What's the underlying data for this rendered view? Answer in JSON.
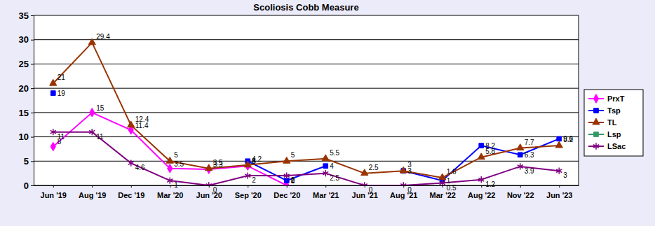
{
  "chart_data": {
    "type": "line",
    "title": "Scoliosis Cobb Measure",
    "categories": [
      "Jun '19",
      "Aug '19",
      "Dec '19",
      "Mar '20",
      "Jun '20",
      "Sep '20",
      "Dec '20",
      "Mar '21",
      "Jun '21",
      "Aug '21",
      "Mar '22",
      "Aug '22",
      "Nov '22",
      "Jun '23"
    ],
    "series": [
      {
        "name": "PrxT",
        "color": "#ff00ff",
        "marker": "diamond",
        "values": [
          8,
          15,
          11.4,
          3.5,
          3.3,
          4,
          0,
          null,
          null,
          null,
          null,
          null,
          null,
          null
        ]
      },
      {
        "name": "Tsp",
        "color": "#0000ff",
        "marker": "square",
        "values": [
          19,
          null,
          null,
          null,
          null,
          5,
          1,
          4,
          null,
          3,
          1,
          8.2,
          6.3,
          9.6
        ]
      },
      {
        "name": "TL",
        "color": "#993300",
        "marker": "triangle",
        "values": [
          21,
          29.4,
          12.4,
          5,
          3.5,
          4.2,
          5,
          5.5,
          2.5,
          3,
          1.6,
          5.8,
          7.7,
          8.2
        ]
      },
      {
        "name": "Lsp",
        "color": "#339966",
        "marker": "square",
        "values": [
          null,
          null,
          null,
          null,
          null,
          null,
          null,
          null,
          null,
          null,
          null,
          null,
          null,
          null
        ]
      },
      {
        "name": "LSac",
        "color": "#800080",
        "marker": "asterisk",
        "values": [
          11,
          11,
          4.6,
          1,
          0,
          2,
          2,
          2.5,
          0,
          0,
          0.5,
          1.2,
          3.9,
          3
        ]
      }
    ],
    "ylim": [
      0,
      35
    ],
    "yticks": [
      0,
      5,
      10,
      15,
      20,
      25,
      30,
      35
    ],
    "grid": true,
    "legend": "right",
    "data_labels": true
  }
}
